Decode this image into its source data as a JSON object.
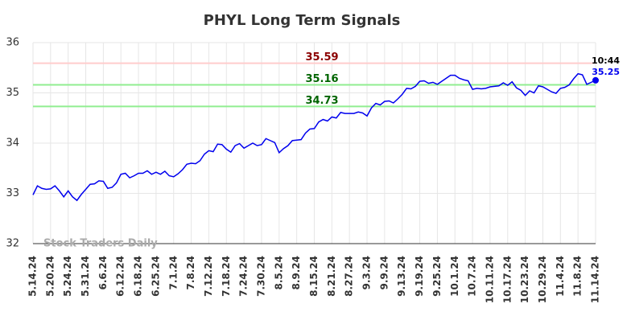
{
  "chart_data": {
    "type": "line",
    "title": "PHYL Long Term Signals",
    "watermark": "Stock Traders Daily",
    "categories": [
      "5.14.24",
      null,
      null,
      null,
      "5.20.24",
      null,
      null,
      null,
      "5.24.24",
      null,
      null,
      null,
      "5.31.24",
      null,
      null,
      null,
      "6.6.24",
      null,
      null,
      null,
      "6.12.24",
      null,
      null,
      null,
      "6.18.24",
      null,
      null,
      null,
      "6.25.24",
      null,
      null,
      null,
      "7.1.24",
      null,
      null,
      null,
      "7.8.24",
      null,
      null,
      null,
      "7.12.24",
      null,
      null,
      null,
      "7.18.24",
      null,
      null,
      null,
      "7.24.24",
      null,
      null,
      null,
      "7.30.24",
      null,
      null,
      null,
      "8.5.24",
      null,
      null,
      null,
      "8.9.24",
      null,
      null,
      null,
      "8.15.24",
      null,
      null,
      null,
      "8.21.24",
      null,
      null,
      null,
      "8.27.24",
      null,
      null,
      null,
      "9.3.24",
      null,
      null,
      null,
      "9.9.24",
      null,
      null,
      null,
      "9.13.24",
      null,
      null,
      null,
      "9.19.24",
      null,
      null,
      null,
      "9.25.24",
      null,
      null,
      null,
      "10.1.24",
      null,
      null,
      null,
      "10.7.24",
      null,
      null,
      null,
      "10.11.24",
      null,
      null,
      null,
      "10.17.24",
      null,
      null,
      null,
      "10.23.24",
      null,
      null,
      null,
      "10.29.24",
      null,
      null,
      null,
      "11.4.24",
      null,
      null,
      null,
      "11.8.24",
      null,
      null,
      null,
      "11.14.24"
    ],
    "values": [
      32.97,
      33.15,
      33.1,
      33.08,
      33.09,
      33.15,
      33.05,
      32.93,
      33.05,
      32.93,
      32.86,
      32.98,
      33.08,
      33.18,
      33.19,
      33.25,
      33.24,
      33.1,
      33.12,
      33.21,
      33.38,
      33.4,
      33.31,
      33.35,
      33.4,
      33.4,
      33.45,
      33.38,
      33.42,
      33.38,
      33.44,
      33.35,
      33.33,
      33.39,
      33.47,
      33.58,
      33.6,
      33.59,
      33.65,
      33.78,
      33.85,
      33.83,
      33.98,
      33.97,
      33.88,
      33.82,
      33.95,
      33.99,
      33.9,
      33.95,
      34.0,
      33.95,
      33.97,
      34.09,
      34.05,
      34.01,
      33.81,
      33.89,
      33.95,
      34.05,
      34.06,
      34.07,
      34.2,
      34.28,
      34.29,
      34.42,
      34.47,
      34.44,
      34.52,
      34.5,
      34.61,
      34.59,
      34.59,
      34.59,
      34.62,
      34.6,
      34.54,
      34.7,
      34.79,
      34.76,
      34.83,
      34.84,
      34.8,
      34.88,
      34.97,
      35.09,
      35.08,
      35.13,
      35.23,
      35.24,
      35.19,
      35.21,
      35.17,
      35.23,
      35.29,
      35.35,
      35.35,
      35.29,
      35.26,
      35.24,
      35.07,
      35.09,
      35.08,
      35.09,
      35.12,
      35.13,
      35.14,
      35.2,
      35.15,
      35.22,
      35.1,
      35.05,
      34.95,
      35.04,
      35.0,
      35.14,
      35.12,
      35.07,
      35.02,
      34.99,
      35.09,
      35.11,
      35.16,
      35.28,
      35.38,
      35.36,
      35.17,
      35.21,
      35.25
    ],
    "color": "#0000ee",
    "last_label": "10:44",
    "ylim": [
      32,
      36
    ],
    "yticks": [
      32,
      33,
      34,
      35,
      36
    ],
    "grid": true,
    "hlines": [
      {
        "value": 35.59,
        "color": "#ffcccc",
        "text_color": "#8b0000"
      },
      {
        "value": 35.16,
        "color": "#90ee90",
        "text_color": "#006400"
      },
      {
        "value": 34.73,
        "color": "#90ee90",
        "text_color": "#006400"
      }
    ]
  }
}
